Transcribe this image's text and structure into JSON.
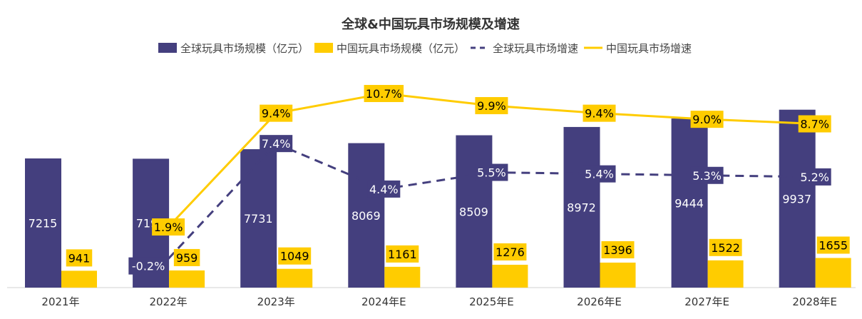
{
  "chart_data": {
    "type": "bar",
    "title": "全球&中国玩具市场规模及增速",
    "categories": [
      "2021年",
      "2022年",
      "2023年",
      "2024年E",
      "2025年E",
      "2026年E",
      "2027年E",
      "2028年E"
    ],
    "series": [
      {
        "name": "全球玩具市场规模（亿元）",
        "kind": "bar",
        "color": "#443f7e",
        "values": [
          7215,
          7199,
          7731,
          8069,
          8509,
          8972,
          9444,
          9937
        ],
        "labels": [
          "7215",
          "7199",
          "7731",
          "8069",
          "8509",
          "8972",
          "9444",
          "9937"
        ]
      },
      {
        "name": "中国玩具市场规模（亿元）",
        "kind": "bar",
        "color": "#ffcc00",
        "values": [
          941,
          959,
          1049,
          1161,
          1276,
          1396,
          1522,
          1655
        ],
        "labels": [
          "941",
          "959",
          "1049",
          "1161",
          "1276",
          "1396",
          "1522",
          "1655"
        ]
      },
      {
        "name": "全球玩具市场增速",
        "kind": "line",
        "style": "dashed",
        "color": "#443f7e",
        "values": [
          null,
          -0.2,
          7.4,
          4.4,
          5.5,
          5.4,
          5.3,
          5.2
        ],
        "labels": [
          null,
          "-0.2%",
          "7.4%",
          "4.4%",
          "5.5%",
          "5.4%",
          "5.3%",
          "5.2%"
        ]
      },
      {
        "name": "中国玩具市场增速",
        "kind": "line",
        "style": "solid",
        "color": "#ffcc00",
        "values": [
          null,
          1.9,
          9.4,
          10.7,
          9.9,
          9.4,
          9.0,
          8.7
        ],
        "labels": [
          null,
          "1.9%",
          "9.4%",
          "10.7%",
          "9.9%",
          "9.4%",
          "9.0%",
          "8.7%"
        ]
      }
    ],
    "legend": "top",
    "grid": false
  }
}
